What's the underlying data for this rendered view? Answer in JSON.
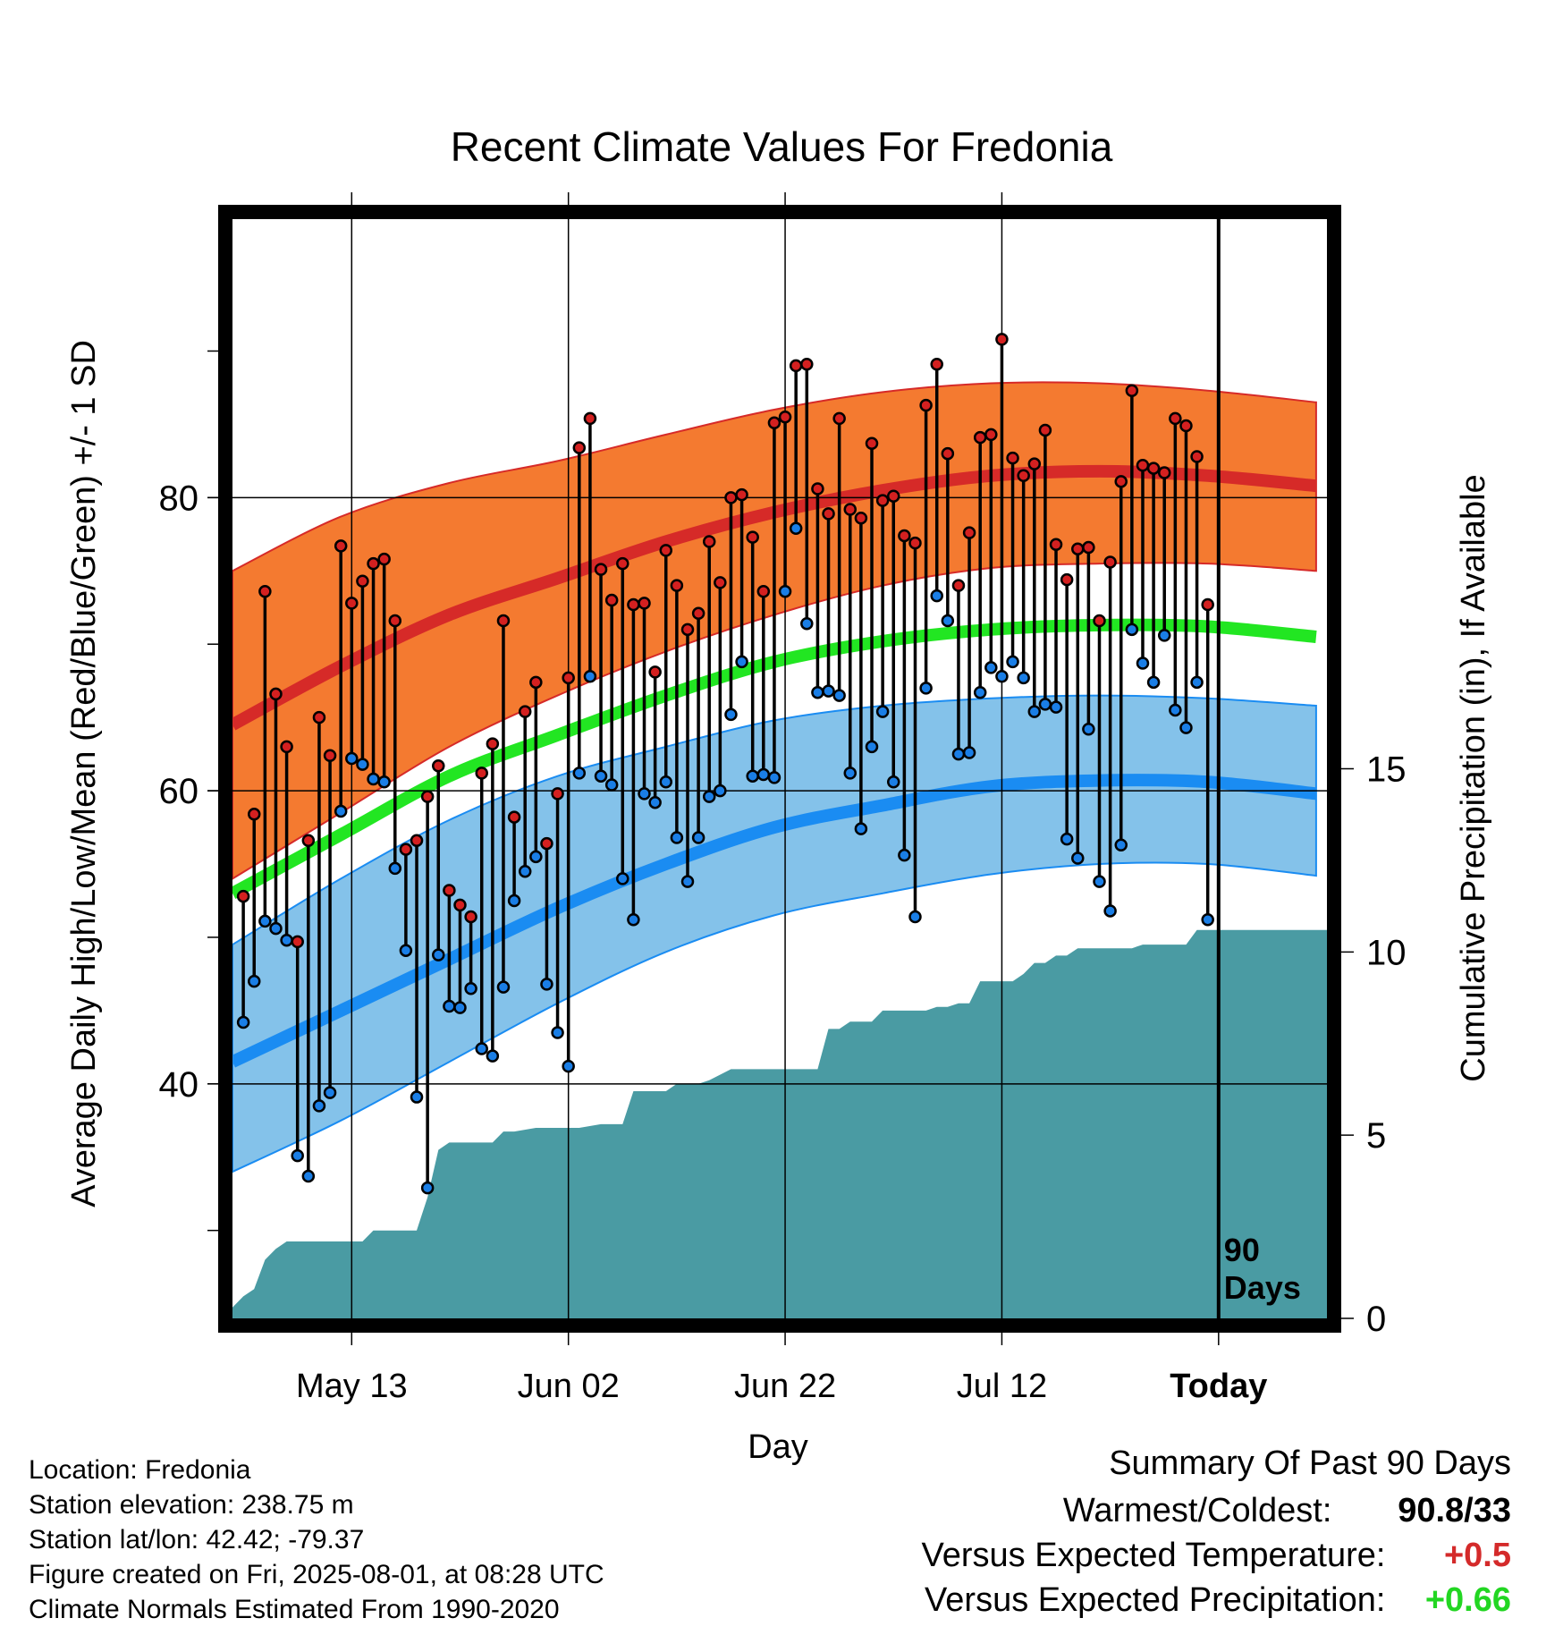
{
  "chart_data": {
    "type": "line",
    "title": "Recent Climate Values For Fredonia",
    "xlabel": "Day",
    "ylabel": "Average Daily High/Low/Mean (Red/Blue/Green) +/- 1 SD",
    "y2label": "Cumulative Precipitation (in), If Available",
    "ylim": [
      24,
      99
    ],
    "y2lim": [
      0,
      30
    ],
    "y_ticks": [
      "40",
      "60",
      "80"
    ],
    "y2_ticks": [
      "0",
      "5",
      "10",
      "15"
    ],
    "x_ticks": [
      "May 13",
      "Jun 02",
      "Jun 22",
      "Jul 12",
      "Today"
    ],
    "x_tick_days": [
      11,
      31,
      51,
      71,
      91
    ],
    "xlim": [
      0,
      101
    ],
    "today_day": 91,
    "today_label": "90 Days",
    "grid": true,
    "colors": {
      "high_band": "#f47a30",
      "high_line": "#d62a28",
      "low_band": "#84c2ea",
      "low_line": "#1a8cf2",
      "mean_line": "#22e622",
      "precip": "#4a9ba3",
      "high_dot": "#d42020",
      "low_dot": "#1a7ee6"
    },
    "normals": {
      "days": [
        0,
        10,
        20,
        30,
        40,
        50,
        60,
        70,
        80,
        90,
        100
      ],
      "high_mean": [
        64.5,
        68.5,
        72.0,
        74.5,
        77.0,
        79.0,
        80.5,
        81.5,
        81.8,
        81.5,
        80.8
      ],
      "high_sd_upper": [
        75.0,
        78.7,
        81.0,
        82.5,
        84.3,
        86.0,
        87.2,
        87.8,
        87.8,
        87.3,
        86.5
      ],
      "high_sd_lower": [
        54.0,
        58.5,
        63.0,
        66.5,
        69.5,
        72.0,
        74.0,
        75.2,
        75.5,
        75.5,
        75.0
      ],
      "mean_line": [
        53.0,
        57.0,
        61.0,
        63.8,
        66.5,
        68.8,
        70.2,
        71.0,
        71.3,
        71.2,
        70.5
      ],
      "low_mean": [
        41.5,
        45.0,
        48.5,
        52.0,
        55.0,
        57.5,
        59.0,
        60.3,
        60.7,
        60.6,
        59.8
      ],
      "low_sd_upper": [
        49.5,
        54.0,
        58.0,
        61.0,
        63.0,
        64.8,
        65.8,
        66.3,
        66.5,
        66.3,
        65.8
      ],
      "low_sd_lower": [
        34.0,
        37.5,
        41.5,
        45.5,
        49.0,
        51.5,
        53.0,
        54.3,
        55.0,
        55.0,
        54.2
      ]
    },
    "daily": {
      "days": [
        1,
        2,
        3,
        4,
        5,
        6,
        7,
        8,
        9,
        10,
        11,
        12,
        13,
        14,
        15,
        16,
        17,
        18,
        19,
        20,
        21,
        22,
        23,
        24,
        25,
        26,
        27,
        28,
        29,
        30,
        31,
        32,
        33,
        34,
        35,
        36,
        37,
        38,
        39,
        40,
        41,
        42,
        43,
        44,
        45,
        46,
        47,
        48,
        49,
        50,
        51,
        52,
        53,
        54,
        55,
        56,
        57,
        58,
        59,
        60,
        61,
        62,
        63,
        64,
        65,
        66,
        67,
        68,
        69,
        70,
        71,
        72,
        73,
        74,
        75,
        76,
        77,
        78,
        79,
        80,
        81,
        82,
        83,
        84,
        85,
        86,
        87,
        88,
        89,
        90
      ],
      "high": [
        52.8,
        58.4,
        73.6,
        66.6,
        63.0,
        49.7,
        56.6,
        65.0,
        62.4,
        76.7,
        72.8,
        74.3,
        75.5,
        75.8,
        71.6,
        56.0,
        56.6,
        59.6,
        61.7,
        53.2,
        52.2,
        51.4,
        61.2,
        63.2,
        71.6,
        58.2,
        65.4,
        67.4,
        56.4,
        59.8,
        67.7,
        83.4,
        85.4,
        75.1,
        73.0,
        75.5,
        72.7,
        72.8,
        68.1,
        76.4,
        74.0,
        71.0,
        72.1,
        77.0,
        74.2,
        80.0,
        80.2,
        77.3,
        73.6,
        85.1,
        85.5,
        89.0,
        89.1,
        80.6,
        78.9,
        85.4,
        79.2,
        78.6,
        83.7,
        79.8,
        80.1,
        77.4,
        76.9,
        86.3,
        89.1,
        83.0,
        74.0,
        77.6,
        84.1,
        84.3,
        90.8,
        82.7,
        81.5,
        82.3,
        84.6,
        76.8,
        74.4,
        76.5,
        76.6,
        71.6,
        75.6,
        81.1,
        87.3,
        82.2,
        82.0,
        81.7,
        85.4,
        84.9,
        82.8,
        72.7
      ],
      "low": [
        44.2,
        47.0,
        51.1,
        50.6,
        49.8,
        35.1,
        33.7,
        38.5,
        39.4,
        58.6,
        62.2,
        61.8,
        60.8,
        60.6,
        54.7,
        49.1,
        39.1,
        32.9,
        48.8,
        45.3,
        45.2,
        46.5,
        42.4,
        41.9,
        46.6,
        52.5,
        54.5,
        55.5,
        46.8,
        43.5,
        41.2,
        61.2,
        67.8,
        61.0,
        60.4,
        54.0,
        51.2,
        59.8,
        59.2,
        60.6,
        56.8,
        53.8,
        56.8,
        59.6,
        60.0,
        65.2,
        68.8,
        61.0,
        61.1,
        60.9,
        73.6,
        77.9,
        71.4,
        66.7,
        66.8,
        66.5,
        61.2,
        57.4,
        63.0,
        65.4,
        60.6,
        55.6,
        51.4,
        67.0,
        73.3,
        71.6,
        62.5,
        62.6,
        66.7,
        68.4,
        67.8,
        68.8,
        67.7,
        65.4,
        65.9,
        65.7,
        56.7,
        55.4,
        64.2,
        53.8,
        51.8,
        56.3,
        71.0,
        68.7,
        67.4,
        70.6,
        65.5,
        64.3,
        67.4,
        51.2
      ]
    },
    "precip_cumulative": {
      "days": [
        0,
        1,
        2,
        3,
        4,
        5,
        8,
        10,
        12,
        13,
        15,
        17,
        18,
        19,
        20,
        21,
        22,
        23,
        24,
        25,
        26,
        28,
        30,
        32,
        34,
        36,
        37,
        38,
        39,
        40,
        41,
        43,
        44,
        46,
        47,
        48,
        49,
        50,
        52,
        54,
        55,
        56,
        57,
        58,
        59,
        60,
        61,
        62,
        63,
        64,
        65,
        66,
        67,
        68,
        69,
        70,
        71,
        72,
        73,
        74,
        75,
        76,
        77,
        78,
        79,
        80,
        81,
        82,
        83,
        84,
        85,
        86,
        87,
        88,
        89,
        90,
        91,
        92,
        101
      ],
      "values": [
        0.3,
        0.6,
        0.8,
        1.6,
        1.9,
        2.1,
        2.1,
        2.1,
        2.1,
        2.4,
        2.4,
        2.4,
        3.3,
        4.6,
        4.8,
        4.8,
        4.8,
        4.8,
        4.8,
        5.1,
        5.1,
        5.2,
        5.2,
        5.2,
        5.3,
        5.3,
        6.2,
        6.2,
        6.2,
        6.2,
        6.4,
        6.4,
        6.5,
        6.8,
        6.8,
        6.8,
        6.8,
        6.8,
        6.8,
        6.8,
        7.9,
        7.9,
        8.1,
        8.1,
        8.1,
        8.4,
        8.4,
        8.4,
        8.4,
        8.4,
        8.5,
        8.5,
        8.6,
        8.6,
        9.2,
        9.2,
        9.2,
        9.2,
        9.4,
        9.7,
        9.7,
        9.9,
        9.9,
        10.1,
        10.1,
        10.1,
        10.1,
        10.1,
        10.1,
        10.2,
        10.2,
        10.2,
        10.2,
        10.2,
        10.6,
        10.6,
        10.6,
        10.6,
        10.6
      ]
    }
  },
  "info": {
    "location": "Location: Fredonia",
    "elevation": "Station elevation: 238.75 m",
    "latlon": "Station lat/lon: 42.42; -79.37",
    "created": "Figure created on Fri, 2025-08-01, at 08:28 UTC",
    "normals": "Climate Normals Estimated From 1990-2020"
  },
  "summary": {
    "title": "Summary Of Past 90 Days",
    "warm_cold_label": "Warmest/Coldest:",
    "warm_cold_value": "90.8/33",
    "temp_label": "Versus Expected Temperature:",
    "temp_value": "+0.5",
    "temp_color": "#d42a2a",
    "precip_label": "Versus Expected Precipitation:",
    "precip_value": "+0.66",
    "precip_color": "#22d622"
  }
}
